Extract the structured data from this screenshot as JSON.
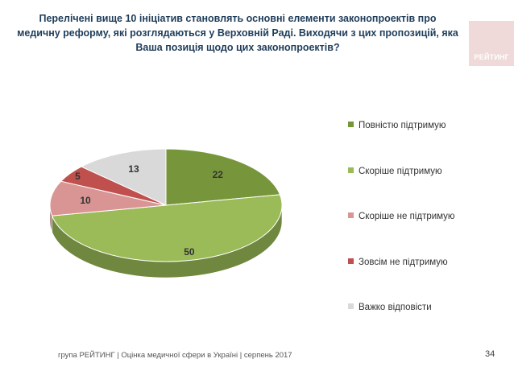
{
  "slide": {
    "title": "Перелічені вище 10 ініціатив становлять основні елементи законопроектів про медичну реформу, які розглядаються у Верховній Раді. Виходячи з цих пропозицій, яка Ваша позиція щодо цих законопроектів?",
    "logo_text": "РЕЙТИНГ",
    "footer": "група РЕЙТИНГ  |  Оцінка медичної сфери в Україні  |  серпень 2017",
    "page_number": "34"
  },
  "chart_data": {
    "type": "pie",
    "style": "3d",
    "legend_position": "right",
    "slices": [
      {
        "label": "Повністю підтримую",
        "value": 22,
        "color": "#77963b"
      },
      {
        "label": "Скоріше підтримую",
        "value": 50,
        "color": "#9bbb59"
      },
      {
        "label": "Скоріше не підтримую",
        "value": 10,
        "color": "#d99594"
      },
      {
        "label": "Зовсім не підтримую",
        "value": 5,
        "color": "#c0504d"
      },
      {
        "label": "Важко відповісти",
        "value": 13,
        "color": "#d9d9d9"
      }
    ]
  }
}
